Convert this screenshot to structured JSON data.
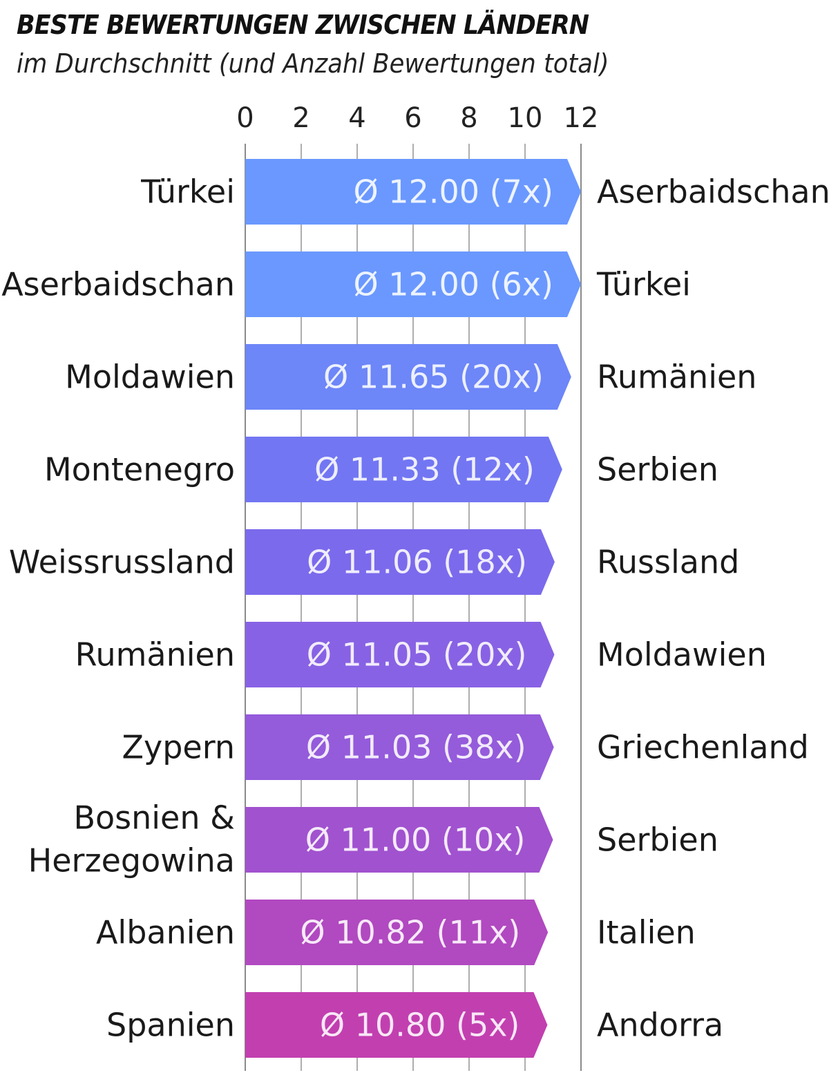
{
  "title": "BESTE BEWERTUNGEN ZWISCHEN LÄNDERN",
  "subtitle": "im Durchschnitt (und Anzahl Bewertungen total)",
  "chart_data": {
    "type": "bar",
    "orientation": "horizontal",
    "title": "BESTE BEWERTUNGEN ZWISCHEN LÄNDERN",
    "subtitle": "im Durchschnitt (und Anzahl Bewertungen total)",
    "xlim": [
      0,
      12
    ],
    "x_ticks": [
      0,
      2,
      4,
      6,
      8,
      10,
      12
    ],
    "grid": true,
    "rows": [
      {
        "from": "Türkei",
        "to": "Aserbaidschan",
        "value": 12.0,
        "label": "Ø 12.00 (7x)",
        "color": "#6a98ff"
      },
      {
        "from": "Aserbaidschan",
        "to": "Türkei",
        "value": 12.0,
        "label": "Ø 12.00 (6x)",
        "color": "#6a98ff"
      },
      {
        "from": "Moldawien",
        "to": "Rumänien",
        "value": 11.65,
        "label": "Ø 11.65 (20x)",
        "color": "#6d86f8"
      },
      {
        "from": "Montenegro",
        "to": "Serbien",
        "value": 11.33,
        "label": "Ø 11.33 (12x)",
        "color": "#7276f2"
      },
      {
        "from": "Weissrussland",
        "to": "Russland",
        "value": 11.06,
        "label": "Ø 11.06 (18x)",
        "color": "#7b6aec"
      },
      {
        "from": "Rumänien",
        "to": "Moldawien",
        "value": 11.05,
        "label": "Ø 11.05 (20x)",
        "color": "#8862e4"
      },
      {
        "from": "Zypern",
        "to": "Griechenland",
        "value": 11.03,
        "label": "Ø 11.03 (38x)",
        "color": "#945bdb"
      },
      {
        "from": "Bosnien & Herzegowina",
        "from_lines": [
          "Bosnien &",
          "Herzegowina"
        ],
        "to": "Serbien",
        "value": 11.0,
        "label": "Ø 11.00 (10x)",
        "color": "#a152cf"
      },
      {
        "from": "Albanien",
        "to": "Italien",
        "value": 10.82,
        "label": "Ø 10.82 (11x)",
        "color": "#b149c0"
      },
      {
        "from": "Spanien",
        "to": "Andorra",
        "value": 10.8,
        "label": "Ø 10.80 (5x)",
        "color": "#c23fb0"
      }
    ]
  }
}
